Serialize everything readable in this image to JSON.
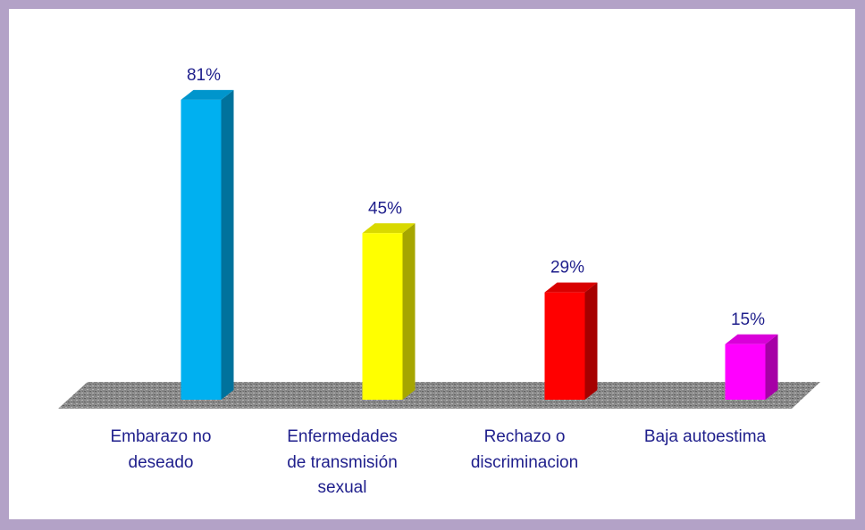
{
  "chart_data": {
    "type": "bar3d",
    "categories": [
      "Embarazo no deseado",
      "Enfermedades de transmisión sexual",
      "Rechazo o discriminacion",
      "Baja autoestima"
    ],
    "values": [
      81,
      45,
      29,
      15
    ],
    "value_labels": [
      "81%",
      "45%",
      "29%",
      "15%"
    ],
    "colors": [
      "#00b0f0",
      "#ffff00",
      "#ff0000",
      "#ff00ff"
    ]
  }
}
